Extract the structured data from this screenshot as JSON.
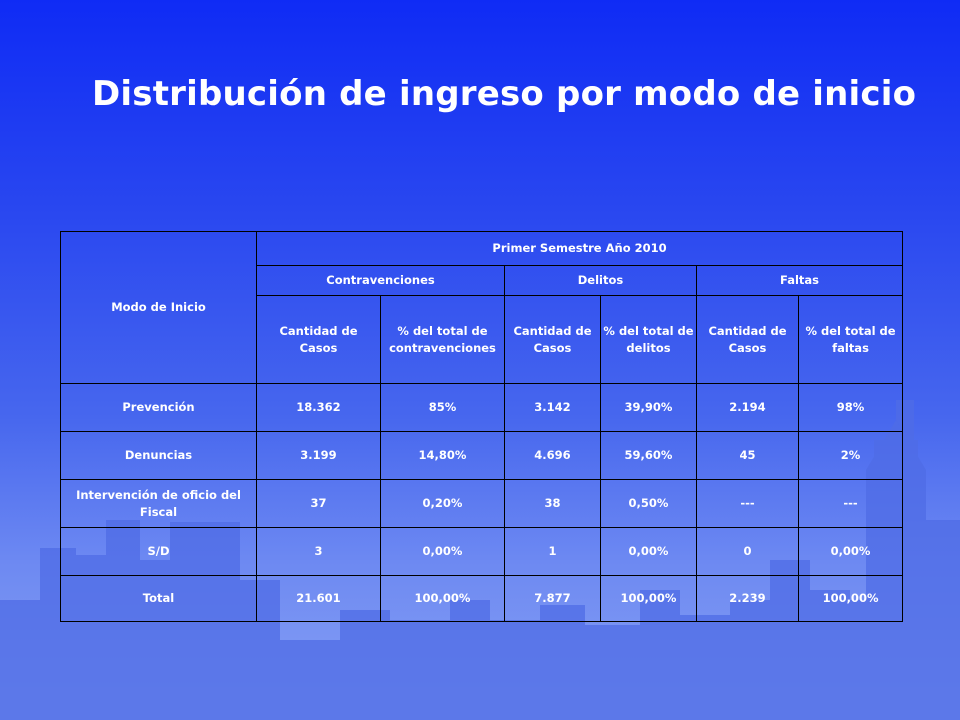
{
  "slide": {
    "title": "Distribución de ingreso por modo de inicio"
  },
  "table": {
    "row_header": "Modo de Inicio",
    "period": "Primer Semestre Año 2010",
    "groups": [
      "Contravenciones",
      "Delitos",
      "Faltas"
    ],
    "subheaders": [
      "Cantidad de Casos",
      "% del total de contravenciones",
      "Cantidad de Casos",
      "% del total de delitos",
      "Cantidad de Casos",
      "% del total de faltas"
    ],
    "rows": [
      {
        "label": "Prevención",
        "cells": [
          "18.362",
          "85%",
          "3.142",
          "39,90%",
          "2.194",
          "98%"
        ]
      },
      {
        "label": "Denuncias",
        "cells": [
          "3.199",
          "14,80%",
          "4.696",
          "59,60%",
          "45",
          "2%"
        ]
      },
      {
        "label": "Intervención de oficio del Fiscal",
        "cells": [
          "37",
          "0,20%",
          "38",
          "0,50%",
          "---",
          "---"
        ]
      },
      {
        "label": "S/D",
        "cells": [
          "3",
          "0,00%",
          "1",
          "0,00%",
          "0",
          "0,00%"
        ]
      }
    ],
    "total": {
      "label": "Total",
      "cells": [
        "21.601",
        "100,00%",
        "7.877",
        "100,00%",
        "2.239",
        "100,00%"
      ]
    }
  },
  "colors": {
    "background_top": "#0f2bf5",
    "background_bottom": "#88a1f4",
    "skyline": "#4f6ce6",
    "text": "#ffffff",
    "grid": "#000000"
  }
}
